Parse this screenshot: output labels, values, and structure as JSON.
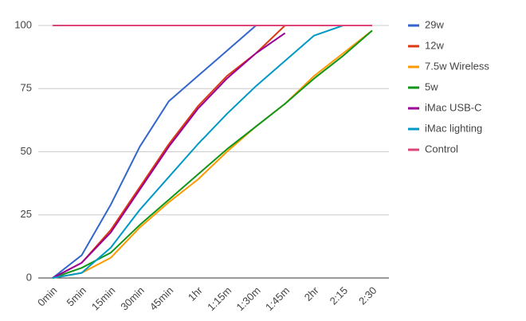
{
  "chart_data": {
    "type": "line",
    "categories": [
      "0min",
      "5min",
      "15min",
      "30min",
      "45min",
      "1hr",
      "1:15m",
      "1:30m",
      "1:45m",
      "2hr",
      "2:15",
      "2:30"
    ],
    "series": [
      {
        "name": "29w",
        "color": "#3366cc",
        "values": [
          0,
          9,
          29,
          52,
          70,
          80,
          90,
          100,
          null,
          null,
          null,
          null
        ]
      },
      {
        "name": "12w",
        "color": "#dc3912",
        "values": [
          0,
          6,
          19,
          36,
          53,
          68,
          80,
          89,
          100,
          null,
          null,
          null
        ]
      },
      {
        "name": "7.5w Wireless",
        "color": "#ff9900",
        "values": [
          0,
          2,
          8,
          20,
          30,
          39,
          50,
          60,
          69,
          80,
          89,
          98
        ]
      },
      {
        "name": "5w",
        "color": "#109618",
        "values": [
          0,
          4,
          10,
          21,
          31,
          41,
          51,
          60,
          69,
          79,
          88,
          98
        ]
      },
      {
        "name": "iMac USB-C",
        "color": "#990099",
        "values": [
          0,
          6,
          18,
          35,
          52,
          67,
          79,
          89,
          97,
          null,
          null,
          null
        ]
      },
      {
        "name": "iMac lighting",
        "color": "#0099c6",
        "values": [
          0,
          2,
          12,
          27,
          40,
          53,
          65,
          76,
          86,
          96,
          100,
          null
        ]
      },
      {
        "name": "Control",
        "color": "#dd4477",
        "values": [
          100,
          100,
          100,
          100,
          100,
          100,
          100,
          100,
          100,
          100,
          100,
          100
        ]
      }
    ],
    "ylim": [
      0,
      100
    ],
    "yticks": [
      0,
      25,
      50,
      75,
      100
    ],
    "grid": true,
    "legend": "right"
  }
}
